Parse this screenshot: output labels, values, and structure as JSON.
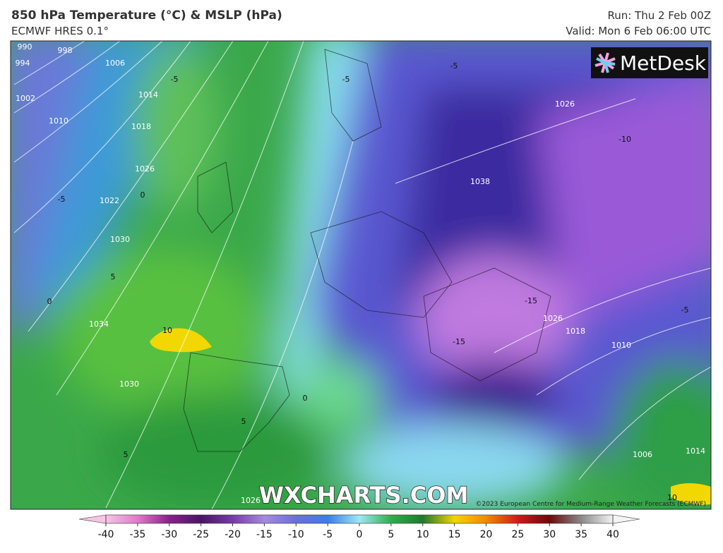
{
  "header": {
    "title": "850 hPa Temperature (°C) & MSLP (hPa)",
    "subtitle": "ECMWF HRES 0.1°",
    "run": "Run: Thu 2 Feb 00Z",
    "valid": "Valid: Mon 6 Feb 06:00 UTC"
  },
  "logo": "MetDesk",
  "watermark": "WXCHARTS.COM",
  "copyright": "©2023 European Centre for Medium-Range Weather Forecasts (ECMWF)",
  "colorbar": {
    "ticks": [
      -40,
      -35,
      -30,
      -25,
      -20,
      -15,
      -10,
      -5,
      0,
      5,
      10,
      15,
      20,
      25,
      30,
      35,
      40
    ],
    "colors": [
      "#f7c4e4",
      "#e07ac8",
      "#8a1f8c",
      "#4a1468",
      "#7a3aa8",
      "#a58ae0",
      "#6b6fd8",
      "#3a7ee8",
      "#9ee8f4",
      "#2fae4a",
      "#1e7a2c",
      "#f5d400",
      "#f08a00",
      "#d01a1a",
      "#6a0a0a",
      "#8a8a8a",
      "#f4f4f4"
    ]
  },
  "isobar_labels": [
    "990",
    "994",
    "998",
    "1002",
    "1006",
    "1010",
    "1014",
    "1018",
    "1022",
    "1026",
    "1030",
    "1034",
    "1030",
    "1026",
    "1038",
    "1026",
    "1026",
    "1018",
    "1010",
    "1006",
    "1014"
  ],
  "temperature_labels": [
    "-5",
    "0",
    "-5",
    "5",
    "0",
    "10",
    "-15",
    "-15",
    "-10",
    "-5",
    "10",
    "0",
    "5",
    "5",
    "-5",
    "-5"
  ]
}
